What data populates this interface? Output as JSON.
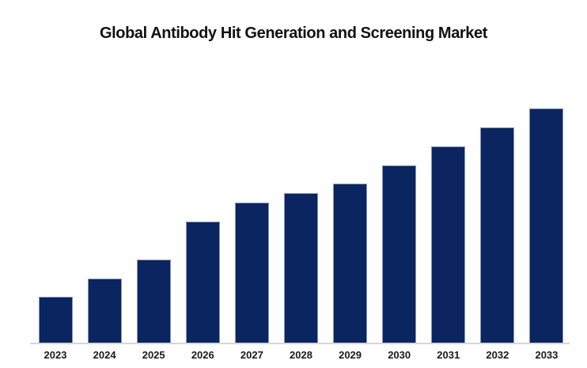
{
  "title": "Global Antibody Hit Generation and Screening Market",
  "colors": {
    "background": "#ffffff",
    "bar_fill": "#0a2560",
    "bar_border": "#9dabc9",
    "axis_line": "#d6d6d6",
    "title_text": "#111111",
    "tick_text": "#1a1a1a"
  },
  "chart_data": {
    "type": "bar",
    "title": "Global Antibody Hit Generation and Screening Market",
    "categories": [
      "2023",
      "2024",
      "2025",
      "2026",
      "2027",
      "2028",
      "2029",
      "2030",
      "2031",
      "2032",
      "2033"
    ],
    "values": [
      19.6,
      27.4,
      35.5,
      51.7,
      59.8,
      63.9,
      67.9,
      75.7,
      83.8,
      91.9,
      100.0
    ],
    "values_note": "no y-axis or data labels shown; values estimated from bar heights, normalized so 2033 = 100",
    "xlabel": "",
    "ylabel": "",
    "ylim": [
      0,
      100
    ],
    "grid": false,
    "legend": "none",
    "y_axis_visible": false
  }
}
